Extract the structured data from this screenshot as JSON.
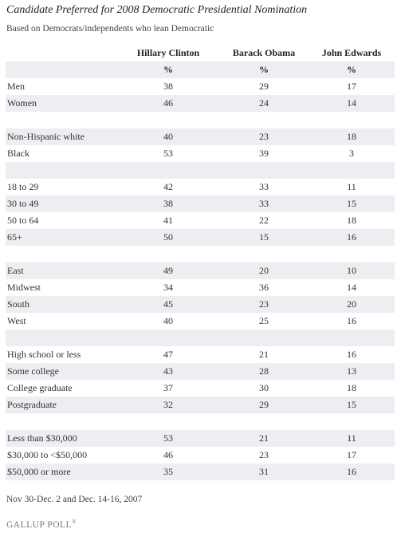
{
  "title": "Candidate Preferred for 2008 Democratic Presidential Nomination",
  "subtitle": "Based on Democrats/independents who lean Democratic",
  "footnote": "Nov 30-Dec. 2 and Dec. 14-16, 2007",
  "logo_text": "GALLUP POLL",
  "logo_mark": "®",
  "colors": {
    "row_shade": "#eceef2",
    "text": "#333333"
  },
  "chart_data": {
    "type": "table",
    "columns": [
      "Hillary Clinton",
      "Barack Obama",
      "John Edwards"
    ],
    "unit_row": [
      "%",
      "%",
      "%"
    ],
    "groups": [
      {
        "rows": [
          {
            "label": "Men",
            "values": [
              38,
              29,
              17
            ]
          },
          {
            "label": "Women",
            "values": [
              46,
              24,
              14
            ]
          }
        ]
      },
      {
        "rows": [
          {
            "label": "Non-Hispanic white",
            "values": [
              40,
              23,
              18
            ]
          },
          {
            "label": "Black",
            "values": [
              53,
              39,
              3
            ]
          }
        ]
      },
      {
        "rows": [
          {
            "label": "18 to 29",
            "values": [
              42,
              33,
              11
            ]
          },
          {
            "label": "30 to 49",
            "values": [
              38,
              33,
              15
            ]
          },
          {
            "label": "50 to 64",
            "values": [
              41,
              22,
              18
            ]
          },
          {
            "label": "65+",
            "values": [
              50,
              15,
              16
            ]
          }
        ]
      },
      {
        "rows": [
          {
            "label": "East",
            "values": [
              49,
              20,
              10
            ]
          },
          {
            "label": "Midwest",
            "values": [
              34,
              36,
              14
            ]
          },
          {
            "label": "South",
            "values": [
              45,
              23,
              20
            ]
          },
          {
            "label": "West",
            "values": [
              40,
              25,
              16
            ]
          }
        ]
      },
      {
        "rows": [
          {
            "label": "High school or less",
            "values": [
              47,
              21,
              16
            ]
          },
          {
            "label": "Some college",
            "values": [
              43,
              28,
              13
            ]
          },
          {
            "label": "College graduate",
            "values": [
              37,
              30,
              18
            ]
          },
          {
            "label": "Postgraduate",
            "values": [
              32,
              29,
              15
            ]
          }
        ]
      },
      {
        "rows": [
          {
            "label": "Less than $30,000",
            "values": [
              53,
              21,
              11
            ]
          },
          {
            "label": "$30,000 to <$50,000",
            "values": [
              46,
              23,
              17
            ]
          },
          {
            "label": "$50,000 or more",
            "values": [
              35,
              31,
              16
            ]
          }
        ]
      }
    ]
  }
}
